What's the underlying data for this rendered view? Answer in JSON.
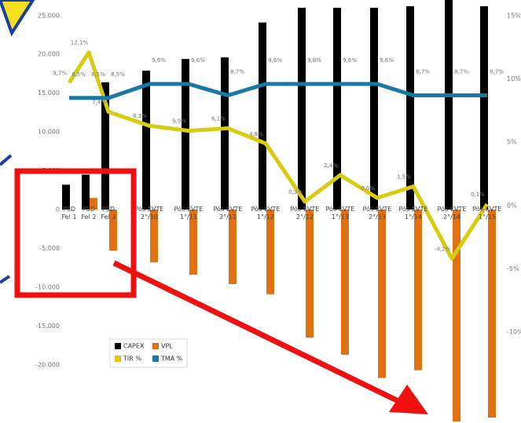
{
  "chart_data": {
    "type": "bar-line",
    "categories": [
      "PSD\nFel 1",
      "PSD\nFel 2",
      "PSD\nFel 3",
      "Pós-EVTE\n2°/10",
      "Pós-EVTE\n1°/11",
      "Pós-EVTE\n2°/11",
      "Pós-EVTE\n1°/12",
      "Pós-EVTE\n2°/12",
      "Pós-EVTE\n1°/13",
      "Pós-EVTE\n2°/13",
      "Pós-EVTE\n1°/14",
      "Pós-EVTE\n2°/14",
      "Pós-EVTE\n1°/15"
    ],
    "series": [
      {
        "name": "CAPEX",
        "type": "bar",
        "color": "#000000",
        "values": [
          3200,
          4500,
          16400,
          17900,
          19400,
          19600,
          24100,
          26000,
          26000,
          26000,
          26200,
          27000,
          26200
        ]
      },
      {
        "name": "VPL",
        "type": "bar",
        "color": "#e07010",
        "values": [
          0,
          1500,
          -5300,
          -6800,
          -8400,
          -9600,
          -10900,
          -16500,
          -18700,
          -21700,
          -20700,
          -27300,
          -26800
        ]
      },
      {
        "name": "TIR %",
        "type": "line",
        "axis": "y2",
        "color": "#d8cc10",
        "values": [
          9.7,
          12.1,
          7.4,
          6.3,
          5.9,
          6.1,
          4.9,
          0.3,
          2.4,
          0.6,
          1.5,
          -4.2,
          0.1
        ],
        "value_labels": [
          "9,7%",
          "12,1%",
          "7,4%",
          "6,3%",
          "5,9%",
          "6,1%",
          "4,9%",
          "0,3%",
          "2,4%",
          "0,6%",
          "1,5%",
          "-4,2%",
          "0,1%"
        ]
      },
      {
        "name": "TMA %",
        "type": "line",
        "axis": "y2",
        "color": "#1a78a8",
        "values": [
          8.5,
          8.5,
          8.5,
          9.6,
          9.6,
          8.7,
          9.6,
          9.6,
          9.6,
          9.6,
          8.7,
          8.7,
          8.7
        ],
        "value_labels": [
          "8,5%",
          "8,5%",
          "8,5%",
          "9,6%",
          "9,6%",
          "8,7%",
          "9,6%",
          "9,6%",
          "9,6%",
          "9,6%",
          "8,7%",
          "8,7%",
          "8,7%"
        ]
      }
    ],
    "ylim": [
      -27500,
      27000
    ],
    "yticks": [
      {
        "value": 25000,
        "label": "25.000"
      },
      {
        "value": 20000,
        "label": "20.000"
      },
      {
        "value": 15000,
        "label": "15.000"
      },
      {
        "value": 10000,
        "label": "10.000"
      },
      {
        "value": 5000,
        "label": "5.000"
      },
      0,
      {
        "value": -5000,
        "label": "-5.000"
      },
      {
        "value": -10000,
        "label": "-10.000"
      },
      {
        "value": -15000,
        "label": "-15.000"
      },
      {
        "value": -20000,
        "label": "-20.000"
      }
    ],
    "y2lim": [
      -17.2,
      16.24
    ],
    "y2ticks": [
      {
        "value": 15,
        "label": "15%"
      },
      {
        "value": 10,
        "label": "10%"
      },
      {
        "value": 5,
        "label": "5%"
      },
      {
        "value": 0,
        "label": "0%"
      },
      {
        "value": -5,
        "label": "-5%"
      },
      {
        "value": -10,
        "label": "-10%"
      }
    ],
    "legend": "bottom-left"
  }
}
